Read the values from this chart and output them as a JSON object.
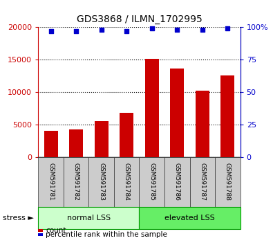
{
  "title": "GDS3868 / ILMN_1702995",
  "categories": [
    "GSM591781",
    "GSM591782",
    "GSM591783",
    "GSM591784",
    "GSM591785",
    "GSM591786",
    "GSM591787",
    "GSM591788"
  ],
  "bar_values": [
    4000,
    4200,
    5500,
    6800,
    15100,
    13600,
    10200,
    12500
  ],
  "percentile_values": [
    97,
    97,
    98,
    97,
    99,
    98,
    98,
    99
  ],
  "bar_color": "#cc0000",
  "percentile_color": "#0000cc",
  "ylim_left": [
    0,
    20000
  ],
  "ylim_right": [
    0,
    100
  ],
  "yticks_left": [
    0,
    5000,
    10000,
    15000,
    20000
  ],
  "yticks_right": [
    0,
    25,
    50,
    75,
    100
  ],
  "ylabel_right_labels": [
    "0",
    "25",
    "50",
    "75",
    "100%"
  ],
  "ylabel_left_labels": [
    "0",
    "5000",
    "10000",
    "15000",
    "20000"
  ],
  "group1_label": "normal LSS",
  "group2_label": "elevated LSS",
  "group1_color": "#ccffcc",
  "group2_color": "#66ee66",
  "group1_border": "#009900",
  "group2_border": "#009900",
  "group1_count": 4,
  "group2_count": 4,
  "stress_label": "stress ►",
  "legend_count_label": "count",
  "legend_percentile_label": "percentile rank within the sample",
  "tick_label_color_left": "#cc0000",
  "tick_label_color_right": "#0000cc",
  "sample_box_color": "#cccccc",
  "sample_box_edge": "#333333"
}
